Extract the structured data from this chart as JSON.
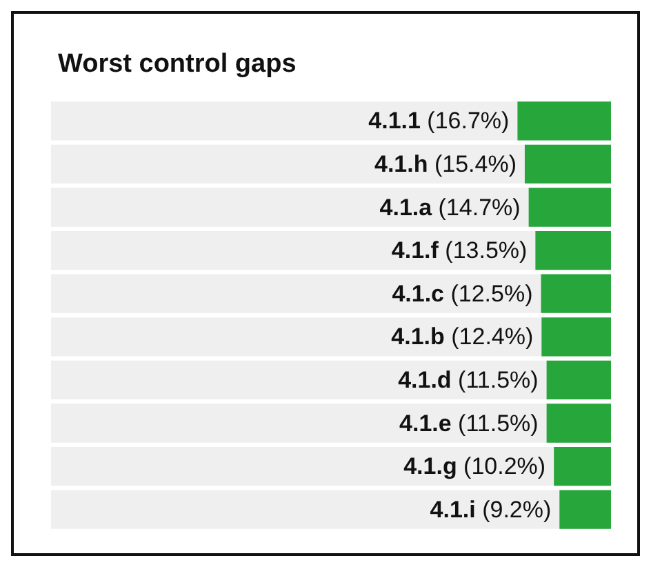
{
  "chart_data": {
    "type": "bar",
    "orientation": "horizontal",
    "title": "Worst control gaps",
    "categories": [
      "4.1.1",
      "4.1.h",
      "4.1.a",
      "4.1.f",
      "4.1.c",
      "4.1.b",
      "4.1.d",
      "4.1.e",
      "4.1.g",
      "4.1.i"
    ],
    "values": [
      16.7,
      15.4,
      14.7,
      13.5,
      12.5,
      12.4,
      11.5,
      11.5,
      10.2,
      9.2
    ],
    "value_labels": [
      "(16.7%)",
      "(15.4%)",
      "(14.7%)",
      "(13.5%)",
      "(12.5%)",
      "(12.4%)",
      "(11.5%)",
      "(11.5%)",
      "(10.2%)",
      "(9.2%)"
    ],
    "color": "#27a63c",
    "xlim": [
      100,
      0
    ]
  }
}
